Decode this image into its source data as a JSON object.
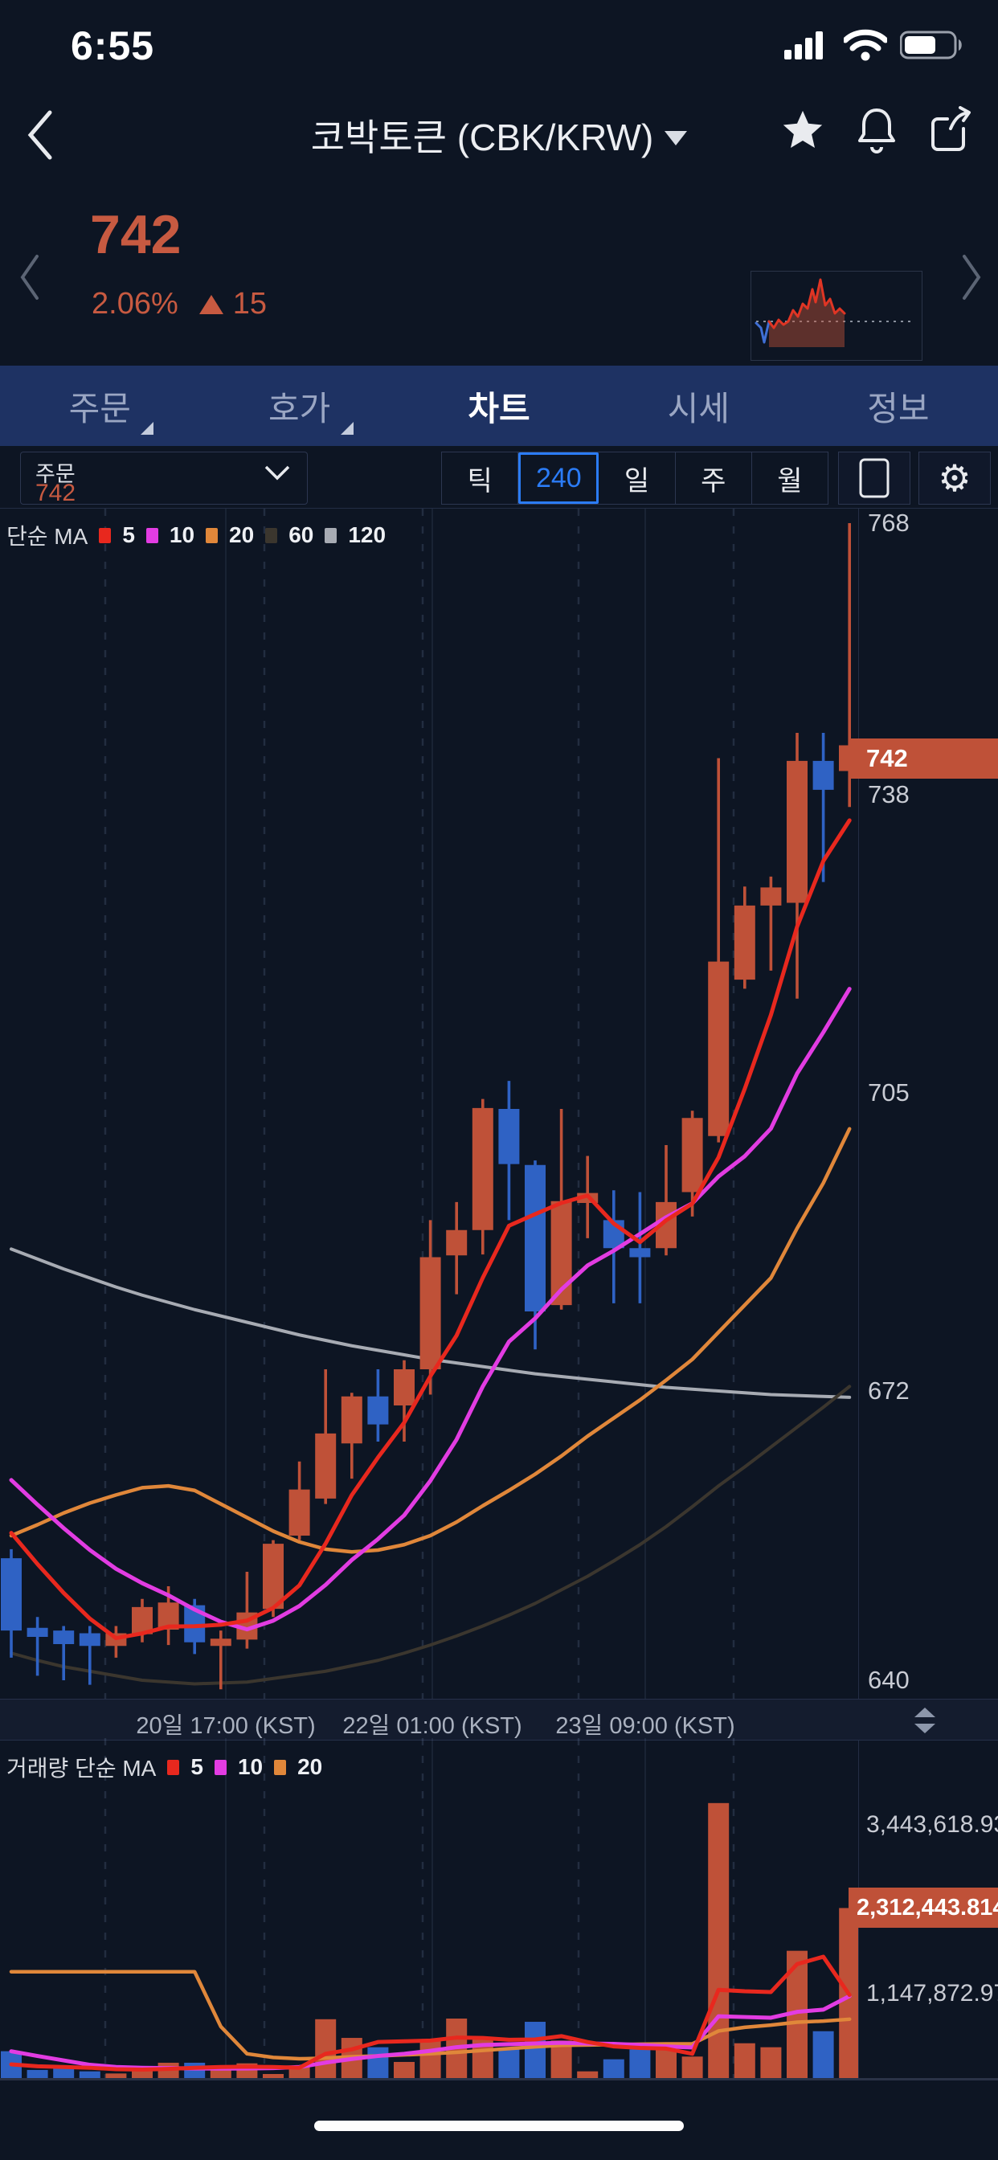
{
  "status_bar": {
    "time": "6:55"
  },
  "header": {
    "title": "코박토큰 (CBK/KRW)"
  },
  "price_summary": {
    "price": "742",
    "change_pct": "2.06%",
    "change_abs": "15"
  },
  "tabs": [
    {
      "label": "주문",
      "active": false,
      "has_sub": true
    },
    {
      "label": "호가",
      "active": false,
      "has_sub": true
    },
    {
      "label": "차트",
      "active": true,
      "has_sub": false
    },
    {
      "label": "시세",
      "active": false,
      "has_sub": false
    },
    {
      "label": "정보",
      "active": false,
      "has_sub": false
    }
  ],
  "controls": {
    "dropdown_label": "주문",
    "dropdown_value": "742",
    "timeframes": [
      "틱",
      "240",
      "일",
      "주",
      "월"
    ],
    "active_timeframe": "240"
  },
  "colors": {
    "up": "#bf5138",
    "down": "#2f62c4",
    "ma5": "#e8281e",
    "ma10": "#e23ce2",
    "ma20": "#e0873a",
    "ma60": "#3b362e",
    "ma120": "#a7abb3",
    "badge_bg": "#bf5138",
    "accent_blue": "#2b7cf7",
    "price_orange": "#c75a41"
  },
  "sparkline": {
    "points": [
      [
        6,
        64
      ],
      [
        12,
        70
      ],
      [
        16,
        88
      ],
      [
        22,
        62
      ],
      [
        28,
        70
      ],
      [
        34,
        60
      ],
      [
        40,
        66
      ],
      [
        46,
        62
      ],
      [
        52,
        48
      ],
      [
        58,
        56
      ],
      [
        64,
        40
      ],
      [
        70,
        46
      ],
      [
        76,
        22
      ],
      [
        80,
        38
      ],
      [
        86,
        10
      ],
      [
        92,
        42
      ],
      [
        98,
        34
      ],
      [
        104,
        52
      ],
      [
        110,
        46
      ],
      [
        116,
        52
      ]
    ],
    "blue_segment_end_index": 3,
    "baseline_y": 62,
    "fill_bottom_y": 94
  },
  "chart_data": [
    {
      "type": "candlestick",
      "title": "단순 MA",
      "legend": [
        {
          "label": "5",
          "color": "#e8281e"
        },
        {
          "label": "10",
          "color": "#e23ce2"
        },
        {
          "label": "20",
          "color": "#e0873a"
        },
        {
          "label": "60",
          "color": "#3b362e"
        },
        {
          "label": "120",
          "color": "#a7abb3"
        }
      ],
      "y_axis_labels": [
        {
          "text": "768",
          "value": 768
        },
        {
          "text": "738",
          "value": 738
        },
        {
          "text": "705",
          "value": 705
        },
        {
          "text": "672",
          "value": 672
        },
        {
          "text": "640",
          "value": 640
        }
      ],
      "current_price_badge": {
        "text": "742",
        "value": 742
      },
      "x_axis_labels": [
        {
          "text": "20일 17:00 (KST)",
          "x": 281
        },
        {
          "text": "22일 01:00 (KST)",
          "x": 538
        },
        {
          "text": "23일 09:00 (KST)",
          "x": 803
        }
      ],
      "ylim": [
        636,
        770
      ],
      "grid_dashed_x": [
        131,
        329,
        526,
        720,
        913
      ],
      "grid_solid_x": [
        281,
        538,
        803
      ],
      "candles_ohlc": [
        [
          653.5,
          654.5,
          642.5,
          645.5
        ],
        [
          645.8,
          647.0,
          640.5,
          644.8
        ],
        [
          645.5,
          646.0,
          640.0,
          644.0
        ],
        [
          645.2,
          646.0,
          639.5,
          643.8
        ],
        [
          643.8,
          646.0,
          642.5,
          645.2
        ],
        [
          645.1,
          649.0,
          644.2,
          648.1
        ],
        [
          645.6,
          650.4,
          643.9,
          648.6
        ],
        [
          648.3,
          649.0,
          642.9,
          644.2
        ],
        [
          643.8,
          645.5,
          639.0,
          644.6
        ],
        [
          644.5,
          652.0,
          643.5,
          647.5
        ],
        [
          647.9,
          655.5,
          647.0,
          655.1
        ],
        [
          656.0,
          664.2,
          655.5,
          661.1
        ],
        [
          660.1,
          674.4,
          659.5,
          667.3
        ],
        [
          666.2,
          671.8,
          662.3,
          671.4
        ],
        [
          671.4,
          674.4,
          666.4,
          668.3
        ],
        [
          670.4,
          675.4,
          666.4,
          674.4
        ],
        [
          674.4,
          690.9,
          671.6,
          686.8
        ],
        [
          687.0,
          692.9,
          682.7,
          689.8
        ],
        [
          689.8,
          704.3,
          687.1,
          703.3
        ],
        [
          703.2,
          706.3,
          690.9,
          697.1
        ],
        [
          697.0,
          697.5,
          676.6,
          680.8
        ],
        [
          681.5,
          703.2,
          681.0,
          693.0
        ],
        [
          692.8,
          698.0,
          688.9,
          693.9
        ],
        [
          690.9,
          694.2,
          681.7,
          687.8
        ],
        [
          687.8,
          694.0,
          681.7,
          686.8
        ],
        [
          687.8,
          699.2,
          687.0,
          692.9
        ],
        [
          694.0,
          703.0,
          691.3,
          702.2
        ],
        [
          700.2,
          742.0,
          699.5,
          719.5
        ],
        [
          717.5,
          727.8,
          716.5,
          725.7
        ],
        [
          725.7,
          728.9,
          718.5,
          727.7
        ],
        [
          726.0,
          744.8,
          715.4,
          741.7
        ],
        [
          741.7,
          744.8,
          728.3,
          738.5
        ],
        [
          740.7,
          768.0,
          736.6,
          742.0
        ]
      ],
      "pre_closes_for_ma": [
        672,
        670,
        668,
        666,
        664,
        662,
        660,
        658,
        656
      ],
      "ma20_line": [
        656,
        657.2,
        658.5,
        659.6,
        660.5,
        661.3,
        661.5,
        661,
        659.5,
        658,
        656.5,
        655.3,
        654.5,
        654.2,
        654.4,
        655,
        656,
        657.5,
        659.3,
        661,
        662.8,
        664.8,
        667,
        669,
        671,
        673.2,
        675.5,
        678.5,
        681.5,
        684.5,
        690,
        695,
        701
      ],
      "ma60_line": [
        643,
        642.2,
        641.5,
        641,
        640.5,
        640,
        639.8,
        639.6,
        639.7,
        639.8,
        640.2,
        640.6,
        641,
        641.6,
        642.2,
        643,
        643.9,
        644.9,
        646,
        647.2,
        648.5,
        650,
        651.5,
        653.2,
        655,
        657,
        659.2,
        661.5,
        663.6,
        665.8,
        668,
        670.2,
        672.5
      ],
      "ma120_line": [
        687.7,
        686.6,
        685.5,
        684.5,
        683.5,
        682.6,
        681.8,
        681,
        680.3,
        679.6,
        678.9,
        678.2,
        677.6,
        677,
        676.5,
        676,
        675.5,
        675.1,
        674.7,
        674.3,
        673.9,
        673.6,
        673.3,
        673,
        672.7,
        672.4,
        672.2,
        672,
        671.8,
        671.6,
        671.5,
        671.4,
        671.3
      ]
    },
    {
      "type": "bar",
      "title": "거래량 단순 MA",
      "legend": [
        {
          "label": "5",
          "color": "#e8281e"
        },
        {
          "label": "10",
          "color": "#e23ce2"
        },
        {
          "label": "20",
          "color": "#e0873a"
        }
      ],
      "y_axis_labels": [
        {
          "text": "3,443,618.937",
          "value": 3443618.937
        },
        {
          "text": "1,147,872.979",
          "value": 1147872.979
        }
      ],
      "current_volume_badge": {
        "text": "2,312,443.814",
        "value": 2312443.814
      },
      "volumes": [
        365000,
        110000,
        156000,
        91000,
        62000,
        128000,
        208000,
        208000,
        128000,
        200000,
        55000,
        164000,
        800000,
        546000,
        419000,
        219000,
        528000,
        809000,
        546000,
        408000,
        765000,
        510000,
        91000,
        255000,
        390000,
        456000,
        292000,
        3740000,
        473000,
        419000,
        1731000,
        637000,
        2312443.814
      ],
      "vol_ma5_line": [
        186000,
        160000,
        150000,
        140000,
        120000,
        115000,
        125000,
        140000,
        150000,
        155000,
        150000,
        140000,
        330000,
        390000,
        490000,
        500000,
        510000,
        550000,
        545000,
        520000,
        525000,
        570000,
        490000,
        430000,
        410000,
        400000,
        330000,
        1200000,
        1180000,
        1170000,
        1550000,
        1650000,
        1130000
      ],
      "vol_ma10_line": [
        364000,
        300000,
        240000,
        180000,
        150000,
        140000,
        135000,
        130000,
        128000,
        130000,
        135000,
        150000,
        210000,
        260000,
        300000,
        330000,
        370000,
        420000,
        450000,
        460000,
        470000,
        480000,
        470000,
        465000,
        450000,
        430000,
        415000,
        840000,
        830000,
        820000,
        900000,
        930000,
        1115000
      ],
      "vol_ma20_line": [
        1446000,
        1446000,
        1446000,
        1446000,
        1446000,
        1446000,
        1446000,
        1446000,
        700000,
        330000,
        280000,
        262000,
        270000,
        290000,
        300000,
        315000,
        330000,
        350000,
        375000,
        400000,
        425000,
        445000,
        450000,
        455000,
        460000,
        465000,
        465000,
        640000,
        690000,
        720000,
        760000,
        775000,
        800000
      ]
    }
  ]
}
